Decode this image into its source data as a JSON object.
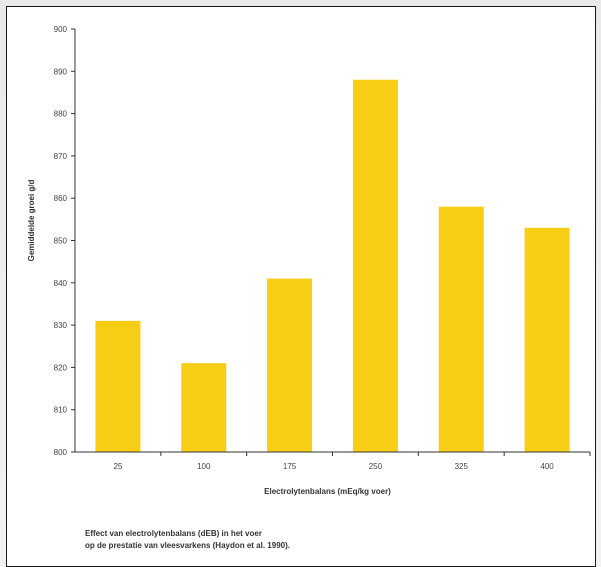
{
  "chart_data": {
    "type": "bar",
    "categories": [
      "25",
      "100",
      "175",
      "250",
      "325",
      "400"
    ],
    "values": [
      831,
      821,
      841,
      888,
      858,
      853
    ],
    "xlabel": "Electrolytenbalans (mEq/kg voer)",
    "ylabel": "Gemiddelde groei g/d",
    "ylim": [
      800,
      900
    ],
    "yticks": [
      800,
      810,
      820,
      830,
      840,
      850,
      860,
      870,
      880,
      890,
      900
    ],
    "bar_color": "#f7cd16",
    "grid": false,
    "legend": "none"
  },
  "caption": {
    "line1": "Effect van electrolytenbalans (dEB) in het voer",
    "line2": "op de prestatie van vleesvarkens (Haydon et al. 1990)."
  }
}
